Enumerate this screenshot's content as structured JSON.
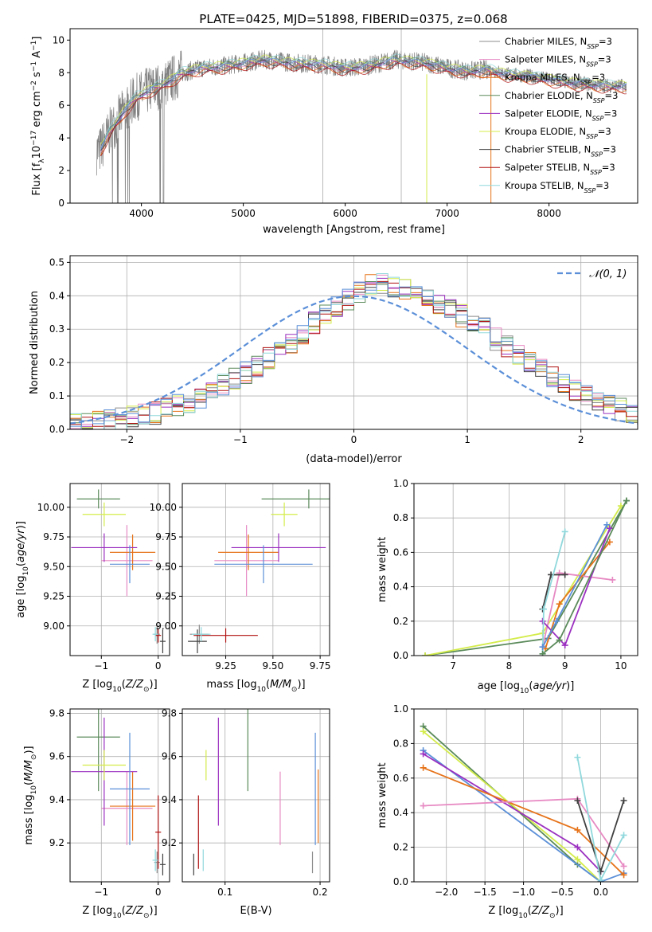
{
  "title": "PLATE=0425, MJD=51898, FIBERID=0375, z=0.068",
  "colors": {
    "chabrier_miles": "#8c8c8c",
    "salpeter_miles": "#e78ac3",
    "kroupa_miles": "#e6731a",
    "chabrier_elodie": "#5a8a5a",
    "salpeter_elodie": "#9b30c0",
    "kroupa_elodie": "#d4ec4a",
    "chabrier_stelib": "#404040",
    "salpeter_stelib": "#b01010",
    "kroupa_stelib": "#90d8dc",
    "extra_blue": "#5b8fd8",
    "normal_curve": "#5b8fd8"
  },
  "legend_top": [
    {
      "label": "Chabrier MILES, N",
      "sub": "SSP",
      "tail": "=3",
      "color": "#8c8c8c"
    },
    {
      "label": "Salpeter MILES, N",
      "sub": "SSP",
      "tail": "=3",
      "color": "#e78ac3"
    },
    {
      "label": "Kroupa MILES, N",
      "sub": "SSP",
      "tail": "=3",
      "color": "#e6731a"
    },
    {
      "label": "Chabrier ELODIE, N",
      "sub": "SSP",
      "tail": "=3",
      "color": "#5a8a5a"
    },
    {
      "label": "Salpeter ELODIE, N",
      "sub": "SSP",
      "tail": "=3",
      "color": "#9b30c0"
    },
    {
      "label": "Kroupa ELODIE, N",
      "sub": "SSP",
      "tail": "=3",
      "color": "#d4ec4a"
    },
    {
      "label": "Chabrier STELIB, N",
      "sub": "SSP",
      "tail": "=3",
      "color": "#404040"
    },
    {
      "label": "Salpeter STELIB, N",
      "sub": "SSP",
      "tail": "=3",
      "color": "#b01010"
    },
    {
      "label": "Kroupa STELIB, N",
      "sub": "SSP",
      "tail": "=3",
      "color": "#90d8dc"
    }
  ],
  "chart_data": [
    {
      "id": "spectrum",
      "type": "line",
      "xlabel": "wavelength [Angstrom, rest frame]",
      "ylabel": "Flux [f",
      "ylabel_parts": [
        "Flux [f",
        "λ",
        "10",
        "−17",
        " erg cm",
        "−2",
        " s",
        "−1",
        " A",
        "−1",
        "]"
      ],
      "xlim": [
        3300,
        8870
      ],
      "ylim": [
        0,
        10.7
      ],
      "xticks": [
        4000,
        5000,
        6000,
        7000,
        8000
      ],
      "yticks": [
        0,
        2,
        4,
        6,
        8,
        10
      ],
      "model_anchor_points": {
        "x": [
          3590,
          3700,
          3850,
          3950,
          4100,
          4250,
          4400,
          4600,
          4800,
          5000,
          5200,
          5500,
          5800,
          6000,
          6200,
          6500,
          6800,
          7000,
          7200,
          7400,
          7600,
          7800,
          8000,
          8200,
          8400,
          8600
        ],
        "y": [
          3.2,
          4.5,
          5.8,
          6.5,
          7.0,
          7.4,
          8.0,
          8.3,
          8.4,
          8.6,
          8.8,
          8.6,
          8.5,
          8.3,
          8.4,
          8.8,
          8.6,
          8.3,
          8.1,
          8.2,
          7.9,
          7.8,
          7.6,
          7.4,
          7.3,
          7.2
        ]
      }
    },
    {
      "id": "residual-histogram",
      "type": "histogram",
      "xlabel": "(data-model)/error",
      "ylabel": "Normed distribution",
      "xlim": [
        -2.5,
        2.5
      ],
      "ylim": [
        0,
        0.52
      ],
      "xticks": [
        -2,
        -1,
        0,
        1,
        2
      ],
      "yticks": [
        0.0,
        0.1,
        0.2,
        0.3,
        0.4,
        0.5
      ],
      "legend": "𝒩(0, 1)",
      "bin_width": 0.1,
      "bin_centers": [
        -2.45,
        -2.35,
        -2.25,
        -2.15,
        -2.05,
        -1.95,
        -1.85,
        -1.75,
        -1.65,
        -1.55,
        -1.45,
        -1.35,
        -1.25,
        -1.15,
        -1.05,
        -0.95,
        -0.85,
        -0.75,
        -0.65,
        -0.55,
        -0.45,
        -0.35,
        -0.25,
        -0.15,
        -0.05,
        0.05,
        0.15,
        0.25,
        0.35,
        0.45,
        0.55,
        0.65,
        0.75,
        0.85,
        0.95,
        1.05,
        1.15,
        1.25,
        1.35,
        1.45,
        1.55,
        1.65,
        1.75,
        1.85,
        1.95,
        2.05,
        2.15,
        2.25,
        2.35,
        2.45
      ],
      "mean_density": [
        0.012,
        0.015,
        0.02,
        0.025,
        0.03,
        0.035,
        0.045,
        0.05,
        0.06,
        0.07,
        0.08,
        0.095,
        0.11,
        0.13,
        0.15,
        0.17,
        0.19,
        0.21,
        0.23,
        0.26,
        0.29,
        0.32,
        0.35,
        0.37,
        0.39,
        0.41,
        0.43,
        0.44,
        0.43,
        0.42,
        0.41,
        0.4,
        0.38,
        0.36,
        0.34,
        0.32,
        0.3,
        0.27,
        0.25,
        0.22,
        0.2,
        0.18,
        0.16,
        0.14,
        0.12,
        0.1,
        0.08,
        0.07,
        0.06,
        0.05
      ]
    },
    {
      "id": "age-vs-Z",
      "type": "errorbar",
      "xlabel": "Z [log10(Z/Z☉)]",
      "ylabel": "age [log10(age/yr)]",
      "xlim": [
        -1.55,
        0.2
      ],
      "ylim": [
        8.75,
        10.2
      ],
      "xticks": [
        -1,
        0
      ],
      "yticks": [
        9.0,
        9.25,
        9.5,
        9.75,
        10.0
      ]
    },
    {
      "id": "age-vs-mass",
      "type": "errorbar",
      "xlabel": "mass [log10(M/M☉)]",
      "ylabel": "",
      "xlim": [
        9.02,
        9.8
      ],
      "ylim": [
        8.75,
        10.2
      ],
      "xticks": [
        9.25,
        9.5,
        9.75
      ],
      "yticks": [
        9.0,
        9.25,
        9.5,
        9.75,
        10.0
      ]
    },
    {
      "id": "weight-vs-age",
      "type": "line",
      "xlabel": "age [log10(age/yr)]",
      "ylabel": "mass weight",
      "xlim": [
        6.3,
        10.3
      ],
      "ylim": [
        0,
        1.0
      ],
      "xticks": [
        7,
        8,
        9,
        10
      ],
      "yticks": [
        0.0,
        0.2,
        0.4,
        0.6,
        0.8,
        1.0
      ]
    },
    {
      "id": "mass-vs-Z",
      "type": "errorbar",
      "xlabel": "Z [log10(Z/Z☉)]",
      "ylabel": "mass [log10(M/M☉)]",
      "xlim": [
        -1.55,
        0.2
      ],
      "ylim": [
        9.02,
        9.82
      ],
      "xticks": [
        -1,
        0
      ],
      "yticks": [
        9.2,
        9.4,
        9.6,
        9.8
      ]
    },
    {
      "id": "mass-vs-EBV",
      "type": "errorbar",
      "xlabel": "E(B-V)",
      "ylabel": "",
      "xlim": [
        0.055,
        0.21
      ],
      "ylim": [
        9.02,
        9.82
      ],
      "xticks": [
        0.1,
        0.2
      ],
      "yticks": [
        9.2,
        9.4,
        9.6,
        9.8
      ]
    },
    {
      "id": "weight-vs-Z",
      "type": "line",
      "xlabel": "Z [log10(Z/Z☉)]",
      "ylabel": "mass weight",
      "xlim": [
        -2.42,
        0.48
      ],
      "ylim": [
        0,
        1.0
      ],
      "xticks": [
        -2.0,
        -1.5,
        -1.0,
        -0.5,
        0.0
      ],
      "yticks": [
        0.0,
        0.2,
        0.4,
        0.6,
        0.8,
        1.0
      ]
    }
  ],
  "fit_results": [
    {
      "model": "Chabrier MILES",
      "color": "#8c8c8c",
      "Z": -0.02,
      "Zerr": 0.05,
      "age": 8.93,
      "ageErr": 0.08,
      "mass": 9.11,
      "massErr": 0.05,
      "ebv": 0.192,
      "ebvErr": 0.05
    },
    {
      "model": "Salpeter MILES",
      "color": "#e78ac3",
      "Z": -0.55,
      "Zerr": 0.45,
      "age": 9.55,
      "ageErr": 0.3,
      "mass": 9.36,
      "massErr": 0.17,
      "ebv": 0.158,
      "ebvErr": 0.17
    },
    {
      "model": "Kroupa MILES",
      "color": "#e6731a",
      "Z": -0.45,
      "Zerr": 0.4,
      "age": 9.62,
      "ageErr": 0.15,
      "mass": 9.37,
      "massErr": 0.16,
      "ebv": 0.198,
      "ebvErr": 0.17
    },
    {
      "model": "Chabrier ELODIE",
      "color": "#5a8a5a",
      "Z": -1.05,
      "Zerr": 0.38,
      "age": 10.07,
      "ageErr": 0.08,
      "mass": 9.69,
      "massErr": 0.25,
      "ebv": 0.124,
      "ebvErr": 0.25
    },
    {
      "model": "Salpeter ELODIE",
      "color": "#9b30c0",
      "Z": -0.95,
      "Zerr": 0.58,
      "age": 9.66,
      "ageErr": 0.12,
      "mass": 9.53,
      "massErr": 0.25,
      "ebv": 0.093,
      "ebvErr": 0.25
    },
    {
      "model": "Kroupa ELODIE",
      "color": "#d4ec4a",
      "Z": -0.95,
      "Zerr": 0.38,
      "age": 9.94,
      "ageErr": 0.1,
      "mass": 9.56,
      "massErr": 0.07,
      "ebv": 0.08,
      "ebvErr": 0.07
    },
    {
      "model": "Chabrier STELIB",
      "color": "#404040",
      "Z": 0.08,
      "Zerr": 0.05,
      "age": 8.87,
      "ageErr": 0.1,
      "mass": 9.1,
      "massErr": 0.05,
      "ebv": 0.067,
      "ebvErr": 0.05
    },
    {
      "model": "Salpeter STELIB",
      "color": "#b01010",
      "Z": 0.0,
      "Zerr": 0.05,
      "age": 8.92,
      "ageErr": 0.06,
      "mass": 9.25,
      "massErr": 0.17,
      "ebv": 0.072,
      "ebvErr": 0.17
    },
    {
      "model": "Kroupa STELIB",
      "color": "#90d8dc",
      "Z": -0.05,
      "Zerr": 0.05,
      "age": 8.93,
      "ageErr": 0.06,
      "mass": 9.12,
      "massErr": 0.05,
      "ebv": 0.077,
      "ebvErr": 0.05
    },
    {
      "model": "extra",
      "color": "#5b8fd8",
      "Z": -0.5,
      "Zerr": 0.35,
      "age": 9.52,
      "ageErr": 0.16,
      "mass": 9.45,
      "massErr": 0.26,
      "ebv": 0.195,
      "ebvErr": 0.26
    }
  ],
  "weights_vs_age": [
    {
      "color": "#5a8a5a",
      "age": [
        6.5,
        8.7,
        10.1
      ],
      "w": [
        0.0,
        0.1,
        0.9
      ]
    },
    {
      "color": "#d4ec4a",
      "age": [
        6.5,
        8.6,
        10.0
      ],
      "w": [
        0.0,
        0.13,
        0.87
      ]
    },
    {
      "color": "#e78ac3",
      "age": [
        8.6,
        8.9,
        9.85
      ],
      "w": [
        0.05,
        0.48,
        0.44
      ]
    },
    {
      "color": "#e6731a",
      "age": [
        8.65,
        8.9,
        9.8
      ],
      "w": [
        0.04,
        0.3,
        0.66
      ]
    },
    {
      "color": "#9b30c0",
      "age": [
        8.6,
        9.0,
        9.8
      ],
      "w": [
        0.2,
        0.06,
        0.74
      ]
    },
    {
      "color": "#404040",
      "age": [
        8.6,
        8.75,
        9.0
      ],
      "w": [
        0.27,
        0.47,
        0.47
      ]
    },
    {
      "color": "#90d8dc",
      "age": [
        8.6,
        8.62,
        9.0
      ],
      "w": [
        0.01,
        0.27,
        0.72
      ]
    },
    {
      "color": "#5b8fd8",
      "age": [
        8.6,
        8.85,
        9.75
      ],
      "w": [
        0.05,
        0.2,
        0.76
      ]
    },
    {
      "color": "#5a8a5a",
      "age": [
        8.6,
        8.9,
        10.1
      ],
      "w": [
        0.01,
        0.09,
        0.9
      ]
    }
  ],
  "weights_vs_Z": [
    {
      "color": "#5a8a5a",
      "Z": [
        -2.3,
        -0.3,
        0.0
      ],
      "w": [
        0.9,
        0.1,
        0.0
      ]
    },
    {
      "color": "#d4ec4a",
      "Z": [
        -2.3,
        -0.3,
        0.0
      ],
      "w": [
        0.87,
        0.13,
        0.0
      ]
    },
    {
      "color": "#5b8fd8",
      "Z": [
        -2.3,
        0.0,
        0.3
      ],
      "w": [
        0.76,
        0.0,
        0.05
      ]
    },
    {
      "color": "#9b30c0",
      "Z": [
        -2.3,
        -0.3,
        0.0
      ],
      "w": [
        0.74,
        0.2,
        0.06
      ]
    },
    {
      "color": "#e6731a",
      "Z": [
        -2.3,
        -0.3,
        0.3
      ],
      "w": [
        0.66,
        0.3,
        0.04
      ]
    },
    {
      "color": "#e78ac3",
      "Z": [
        -2.3,
        -0.3,
        0.3
      ],
      "w": [
        0.44,
        0.48,
        0.09
      ]
    },
    {
      "color": "#404040",
      "Z": [
        -0.3,
        0.0,
        0.3
      ],
      "w": [
        0.47,
        0.06,
        0.47
      ]
    },
    {
      "color": "#90d8dc",
      "Z": [
        -0.3,
        0.0,
        0.3
      ],
      "w": [
        0.72,
        0.01,
        0.27
      ]
    }
  ]
}
